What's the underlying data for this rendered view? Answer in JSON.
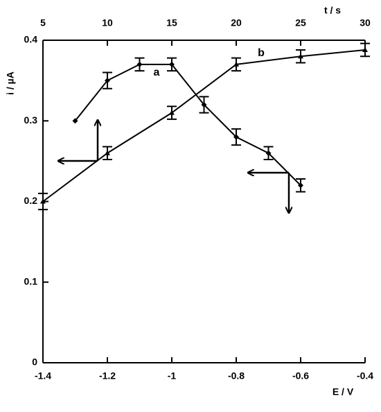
{
  "chart_data": {
    "type": "line",
    "xlabel": "E / V",
    "x2label": "t / s",
    "ylabel": "i / µA",
    "annotations": [
      "a",
      "b"
    ],
    "xlim": [
      -1.4,
      -0.4
    ],
    "xticks": [
      -1.4,
      -1.2,
      -1,
      -0.8,
      -0.6,
      -0.4
    ],
    "x2lim": [
      5,
      30
    ],
    "x2ticks": [
      5,
      10,
      15,
      20,
      25,
      30
    ],
    "ylim": [
      0,
      0.4
    ],
    "yticks": [
      0,
      0.1,
      0.2,
      0.3,
      0.4
    ],
    "series": [
      {
        "name": "a",
        "color": "#000000",
        "marker": "diamond",
        "x": [
          -1.3,
          -1.2,
          -1.1,
          -1.0,
          -0.9,
          -0.8,
          -0.7,
          -0.6
        ],
        "values": [
          0.3,
          0.35,
          0.37,
          0.37,
          0.32,
          0.28,
          0.26,
          0.22
        ],
        "errors": [
          null,
          0.01,
          0.008,
          0.008,
          0.01,
          0.01,
          0.008,
          0.008
        ]
      },
      {
        "name": "b",
        "color": "#000000",
        "marker": "triangle",
        "axis": "x2",
        "x": [
          5,
          10,
          15,
          20,
          25,
          30
        ],
        "values": [
          0.2,
          0.26,
          0.31,
          0.37,
          0.38,
          0.388
        ],
        "errors": [
          0.01,
          0.008,
          0.008,
          0.008,
          0.008,
          0.008
        ]
      }
    ]
  }
}
